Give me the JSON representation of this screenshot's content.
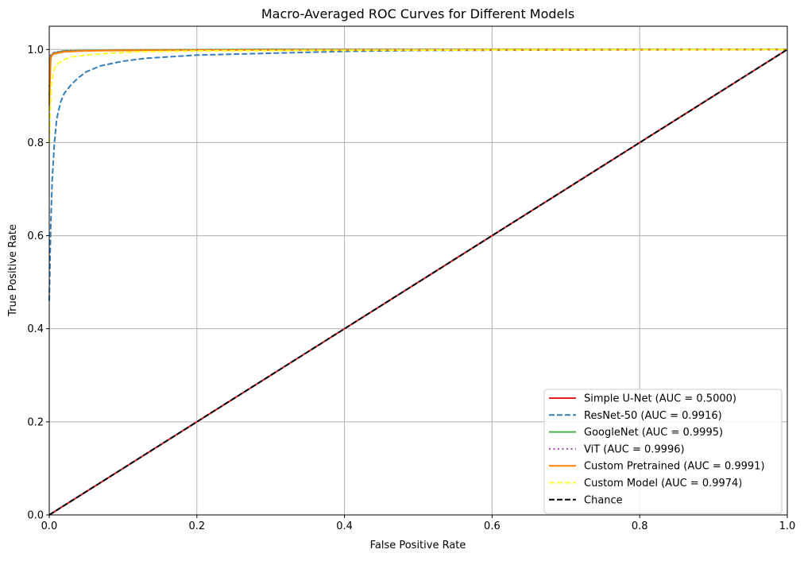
{
  "chart_data": {
    "type": "line",
    "title": "Macro-Averaged ROC Curves for Different Models",
    "xlabel": "False Positive Rate",
    "ylabel": "True Positive Rate",
    "xlim": [
      0,
      1
    ],
    "ylim": [
      0,
      1.05
    ],
    "x_ticks": [
      "0.0",
      "0.2",
      "0.4",
      "0.6",
      "0.8",
      "1.0"
    ],
    "y_ticks": [
      "0.0",
      "0.2",
      "0.4",
      "0.6",
      "0.8",
      "1.0"
    ],
    "grid": true,
    "legend_position": "bottom-right",
    "series": [
      {
        "name": "Simple U-Net (AUC = 0.5000)",
        "color": "#e41a1c",
        "style": "solid",
        "points": [
          [
            0,
            0
          ],
          [
            1,
            1
          ]
        ]
      },
      {
        "name": "ResNet-50 (AUC = 0.9916)",
        "color": "#377eb8",
        "style": "dashed",
        "points": [
          [
            0,
            0.46
          ],
          [
            0.002,
            0.62
          ],
          [
            0.004,
            0.72
          ],
          [
            0.007,
            0.8
          ],
          [
            0.01,
            0.85
          ],
          [
            0.015,
            0.885
          ],
          [
            0.02,
            0.905
          ],
          [
            0.03,
            0.925
          ],
          [
            0.04,
            0.94
          ],
          [
            0.05,
            0.952
          ],
          [
            0.07,
            0.965
          ],
          [
            0.1,
            0.975
          ],
          [
            0.13,
            0.981
          ],
          [
            0.2,
            0.988
          ],
          [
            0.3,
            0.992
          ],
          [
            0.4,
            0.996
          ],
          [
            0.5,
            0.998
          ],
          [
            0.7,
            0.999
          ],
          [
            1.0,
            1.0
          ]
        ]
      },
      {
        "name": "GoogleNet (AUC = 0.9995)",
        "color": "#4daf4a",
        "style": "solid",
        "points": [
          [
            0,
            0.9
          ],
          [
            0.002,
            0.985
          ],
          [
            0.005,
            0.992
          ],
          [
            0.02,
            0.997
          ],
          [
            0.1,
            0.999
          ],
          [
            0.3,
            1.0
          ],
          [
            1.0,
            1.0
          ]
        ]
      },
      {
        "name": "ViT (AUC = 0.9996)",
        "color": "#984ea3",
        "style": "dotted",
        "points": [
          [
            0,
            0.92
          ],
          [
            0.002,
            0.988
          ],
          [
            0.005,
            0.993
          ],
          [
            0.02,
            0.997
          ],
          [
            0.1,
            0.999
          ],
          [
            0.3,
            1.0
          ],
          [
            1.0,
            1.0
          ]
        ]
      },
      {
        "name": "Custom Pretrained (AUC = 0.9991)",
        "color": "#ff7f00",
        "style": "solid",
        "points": [
          [
            0,
            0.88
          ],
          [
            0.002,
            0.982
          ],
          [
            0.005,
            0.99
          ],
          [
            0.02,
            0.995
          ],
          [
            0.05,
            0.997
          ],
          [
            0.1,
            0.998
          ],
          [
            0.3,
            0.999
          ],
          [
            1.0,
            1.0
          ]
        ]
      },
      {
        "name": "Custom Model (AUC = 0.9974)",
        "color": "#ffff33",
        "style": "dashed",
        "points": [
          [
            0,
            0.8
          ],
          [
            0.003,
            0.93
          ],
          [
            0.006,
            0.955
          ],
          [
            0.01,
            0.968
          ],
          [
            0.02,
            0.978
          ],
          [
            0.03,
            0.984
          ],
          [
            0.05,
            0.988
          ],
          [
            0.08,
            0.992
          ],
          [
            0.12,
            0.995
          ],
          [
            0.2,
            0.997
          ],
          [
            0.35,
            0.998
          ],
          [
            0.6,
            0.999
          ],
          [
            1.0,
            1.0
          ]
        ]
      },
      {
        "name": "Chance",
        "color": "#000000",
        "style": "dashed",
        "points": [
          [
            0,
            0
          ],
          [
            1,
            1
          ]
        ]
      }
    ]
  }
}
